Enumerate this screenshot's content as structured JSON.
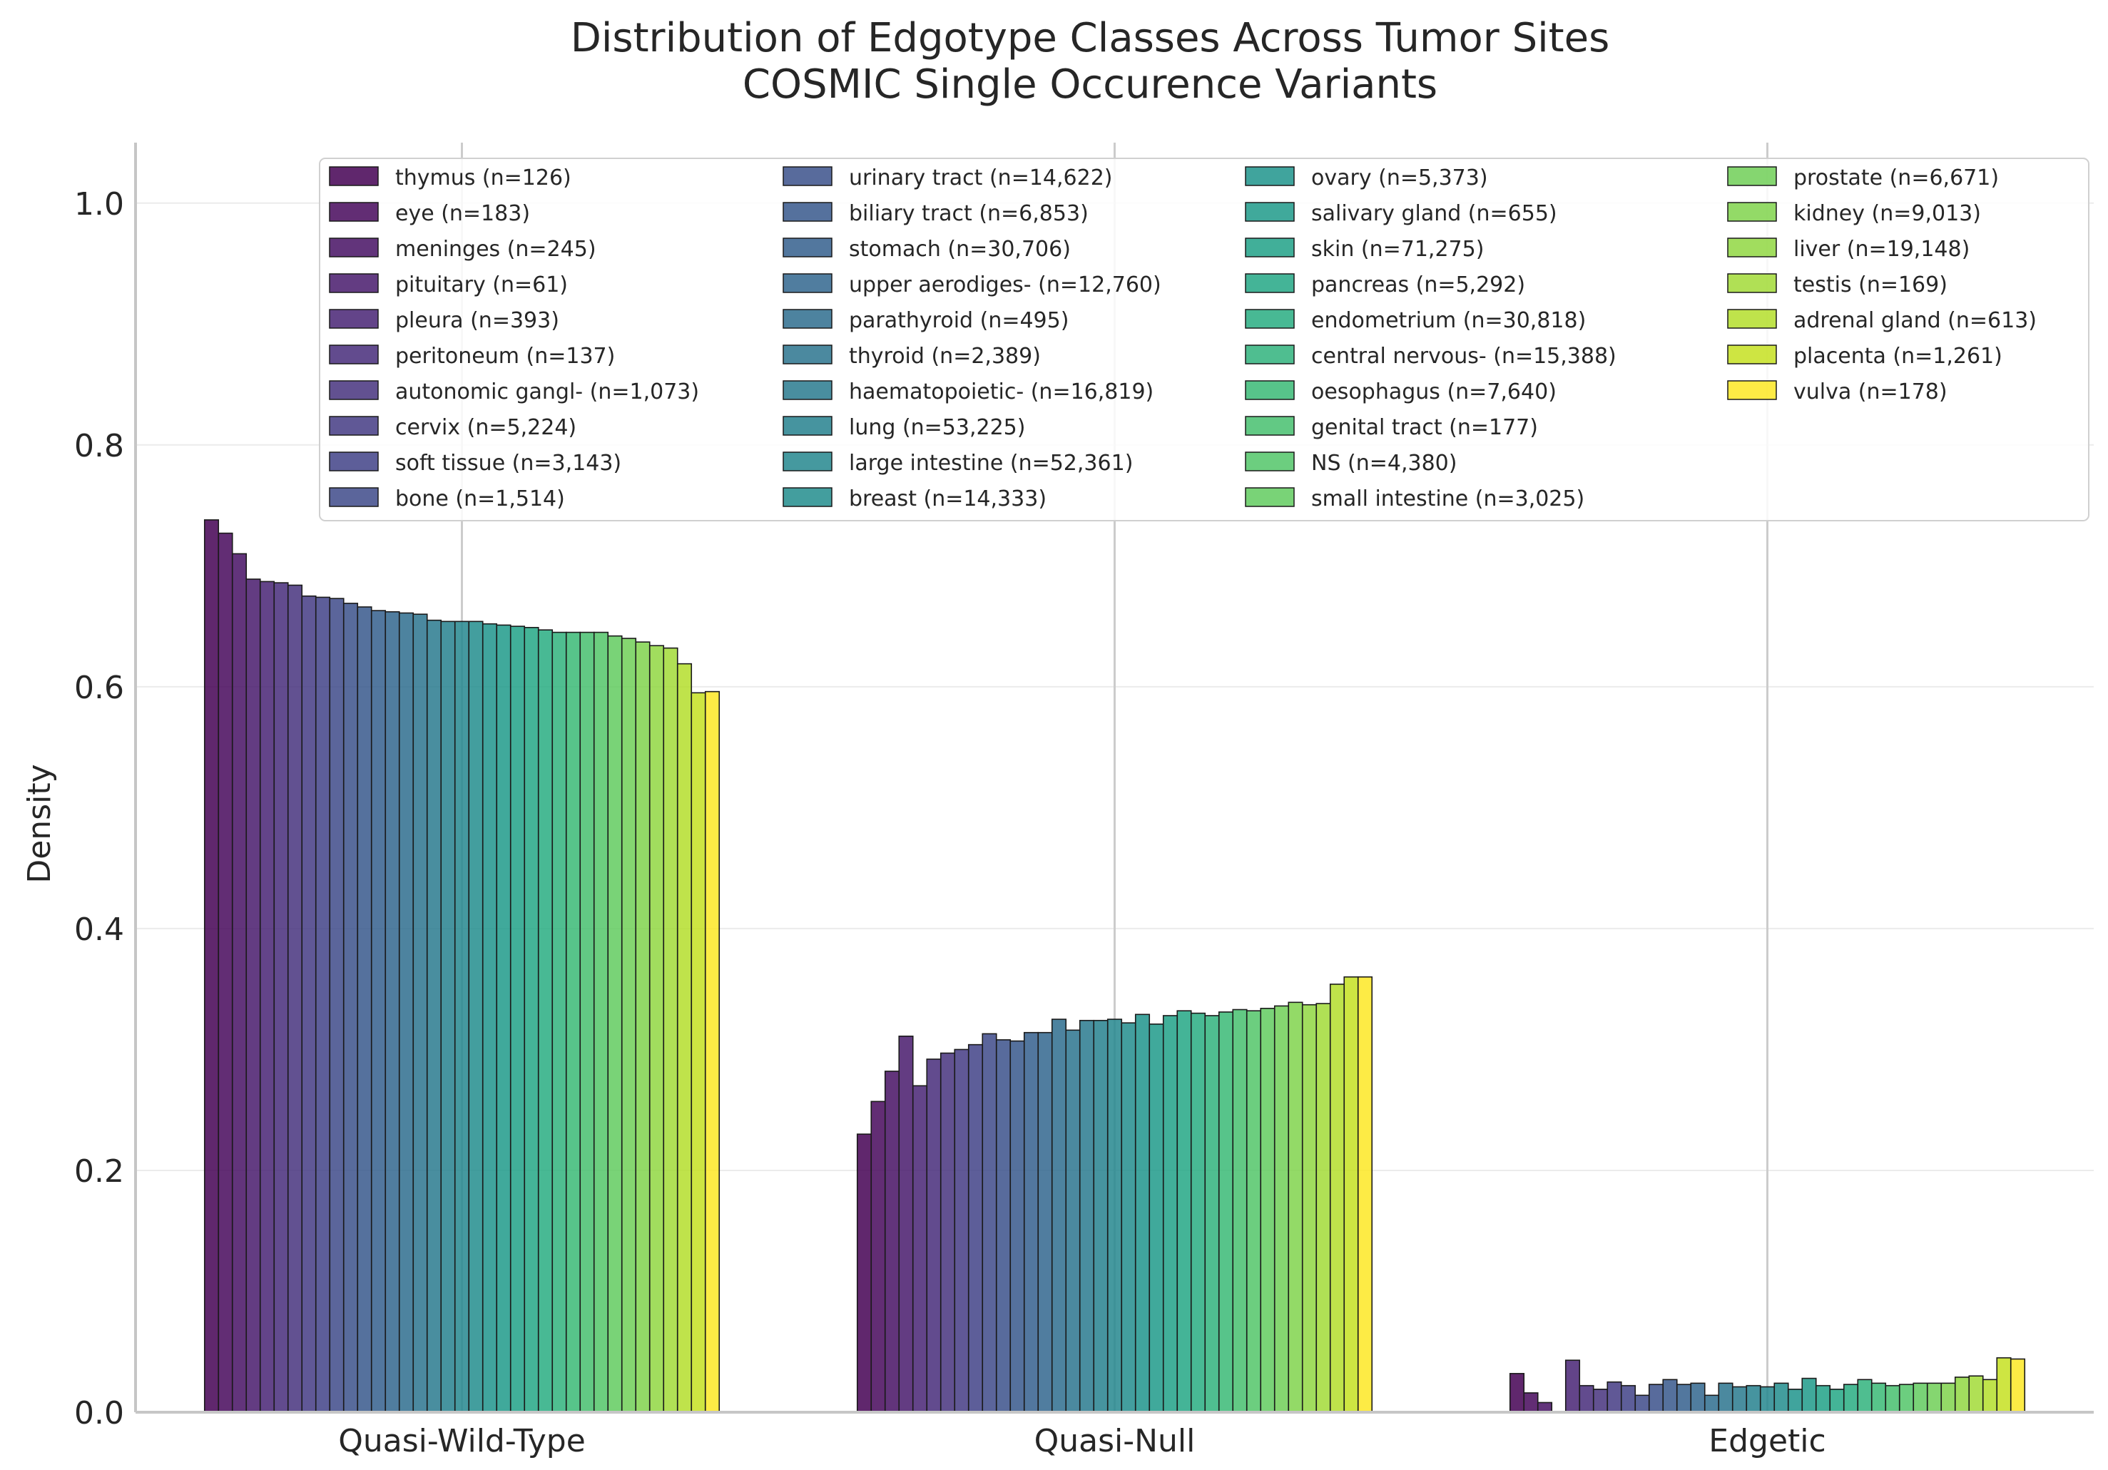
{
  "chart_data": {
    "type": "bar",
    "title": "Distribution of Edgotype Classes Across Tumor Sites",
    "subtitle": "COSMIC Single Occurence Variants",
    "xlabel": "",
    "ylabel": "Density",
    "ylim": [
      0,
      1.05
    ],
    "yticks": [
      "0.0",
      "0.2",
      "0.4",
      "0.6",
      "0.8",
      "1.0"
    ],
    "grid": true,
    "legend_position": "top-right",
    "legend_columns": 4,
    "categories": [
      "Quasi-Wild-Type",
      "Quasi-Null",
      "Edgetic"
    ],
    "series": [
      {
        "name": "thymus (n=126)",
        "values": [
          0.738,
          0.23,
          0.032
        ],
        "color": "#440154"
      },
      {
        "name": "eye (n=183)",
        "values": [
          0.727,
          0.257,
          0.016
        ],
        "color": "#46085c"
      },
      {
        "name": "meninges (n=245)",
        "values": [
          0.71,
          0.282,
          0.008
        ],
        "color": "#471164"
      },
      {
        "name": "pituitary (n=61)",
        "values": [
          0.689,
          0.311,
          0.0
        ],
        "color": "#481a6c"
      },
      {
        "name": "pleura (n=393)",
        "values": [
          0.687,
          0.27,
          0.043
        ],
        "color": "#482374"
      },
      {
        "name": "peritoneum (n=137)",
        "values": [
          0.686,
          0.292,
          0.022
        ],
        "color": "#472c7a"
      },
      {
        "name": "autonomic gangl- (n=1,073)",
        "values": [
          0.684,
          0.297,
          0.019
        ],
        "color": "#46337e"
      },
      {
        "name": "cervix (n=5,224)",
        "values": [
          0.675,
          0.3,
          0.025
        ],
        "color": "#443b84"
      },
      {
        "name": "soft tissue (n=3,143)",
        "values": [
          0.674,
          0.304,
          0.022
        ],
        "color": "#414287"
      },
      {
        "name": "bone (n=1,514)",
        "values": [
          0.673,
          0.313,
          0.014
        ],
        "color": "#3e4a89"
      },
      {
        "name": "urinary tract (n=14,622)",
        "values": [
          0.669,
          0.308,
          0.023
        ],
        "color": "#3b518b"
      },
      {
        "name": "biliary tract (n=6,853)",
        "values": [
          0.666,
          0.307,
          0.027
        ],
        "color": "#37588c"
      },
      {
        "name": "stomach (n=30,706)",
        "values": [
          0.663,
          0.314,
          0.023
        ],
        "color": "#345f8d"
      },
      {
        "name": "upper aerodiges- (n=12,760)",
        "values": [
          0.662,
          0.314,
          0.024
        ],
        "color": "#31668e"
      },
      {
        "name": "parathyroid (n=495)",
        "values": [
          0.661,
          0.325,
          0.014
        ],
        "color": "#2e6d8e"
      },
      {
        "name": "thyroid (n=2,389)",
        "values": [
          0.66,
          0.316,
          0.024
        ],
        "color": "#2b748e"
      },
      {
        "name": "haematopoietic- (n=16,819)",
        "values": [
          0.655,
          0.324,
          0.021
        ],
        "color": "#297a8e"
      },
      {
        "name": "lung (n=53,225)",
        "values": [
          0.654,
          0.324,
          0.022
        ],
        "color": "#26818e"
      },
      {
        "name": "large intestine (n=52,361)",
        "values": [
          0.654,
          0.325,
          0.021
        ],
        "color": "#24878e"
      },
      {
        "name": "breast (n=14,333)",
        "values": [
          0.654,
          0.322,
          0.024
        ],
        "color": "#228d8d"
      },
      {
        "name": "ovary (n=5,373)",
        "values": [
          0.652,
          0.329,
          0.019
        ],
        "color": "#1f948c"
      },
      {
        "name": "salivary gland (n=655)",
        "values": [
          0.651,
          0.321,
          0.028
        ],
        "color": "#1f9a8a"
      },
      {
        "name": "skin (n=71,275)",
        "values": [
          0.65,
          0.328,
          0.022
        ],
        "color": "#20a187"
      },
      {
        "name": "pancreas (n=5,292)",
        "values": [
          0.649,
          0.332,
          0.019
        ],
        "color": "#23a785"
      },
      {
        "name": "endometrium (n=30,818)",
        "values": [
          0.647,
          0.33,
          0.023
        ],
        "color": "#28ad81"
      },
      {
        "name": "central nervous- (n=15,388)",
        "values": [
          0.645,
          0.328,
          0.027
        ],
        "color": "#30b37c"
      },
      {
        "name": "oesophagus (n=7,640)",
        "values": [
          0.645,
          0.331,
          0.024
        ],
        "color": "#3aba76"
      },
      {
        "name": "genital tract (n=177)",
        "values": [
          0.645,
          0.333,
          0.022
        ],
        "color": "#46c06f"
      },
      {
        "name": "NS (n=4,380)",
        "values": [
          0.645,
          0.332,
          0.023
        ],
        "color": "#52c569"
      },
      {
        "name": "small intestine (n=3,025)",
        "values": [
          0.642,
          0.334,
          0.024
        ],
        "color": "#61cb5f"
      },
      {
        "name": "prostate (n=6,671)",
        "values": [
          0.64,
          0.336,
          0.024
        ],
        "color": "#70cf57"
      },
      {
        "name": "kidney (n=9,013)",
        "values": [
          0.637,
          0.339,
          0.024
        ],
        "color": "#80d44c"
      },
      {
        "name": "liver (n=19,148)",
        "values": [
          0.634,
          0.337,
          0.029
        ],
        "color": "#91d742"
      },
      {
        "name": "testis (n=169)",
        "values": [
          0.632,
          0.338,
          0.03
        ],
        "color": "#a2da37"
      },
      {
        "name": "adrenal gland (n=613)",
        "values": [
          0.619,
          0.354,
          0.027
        ],
        "color": "#b4de2c"
      },
      {
        "name": "placenta (n=1,261)",
        "values": [
          0.595,
          0.36,
          0.045
        ],
        "color": "#c5e021"
      },
      {
        "name": "vulva (n=178)",
        "values": [
          0.596,
          0.36,
          0.044
        ],
        "color": "#fde725"
      }
    ]
  }
}
